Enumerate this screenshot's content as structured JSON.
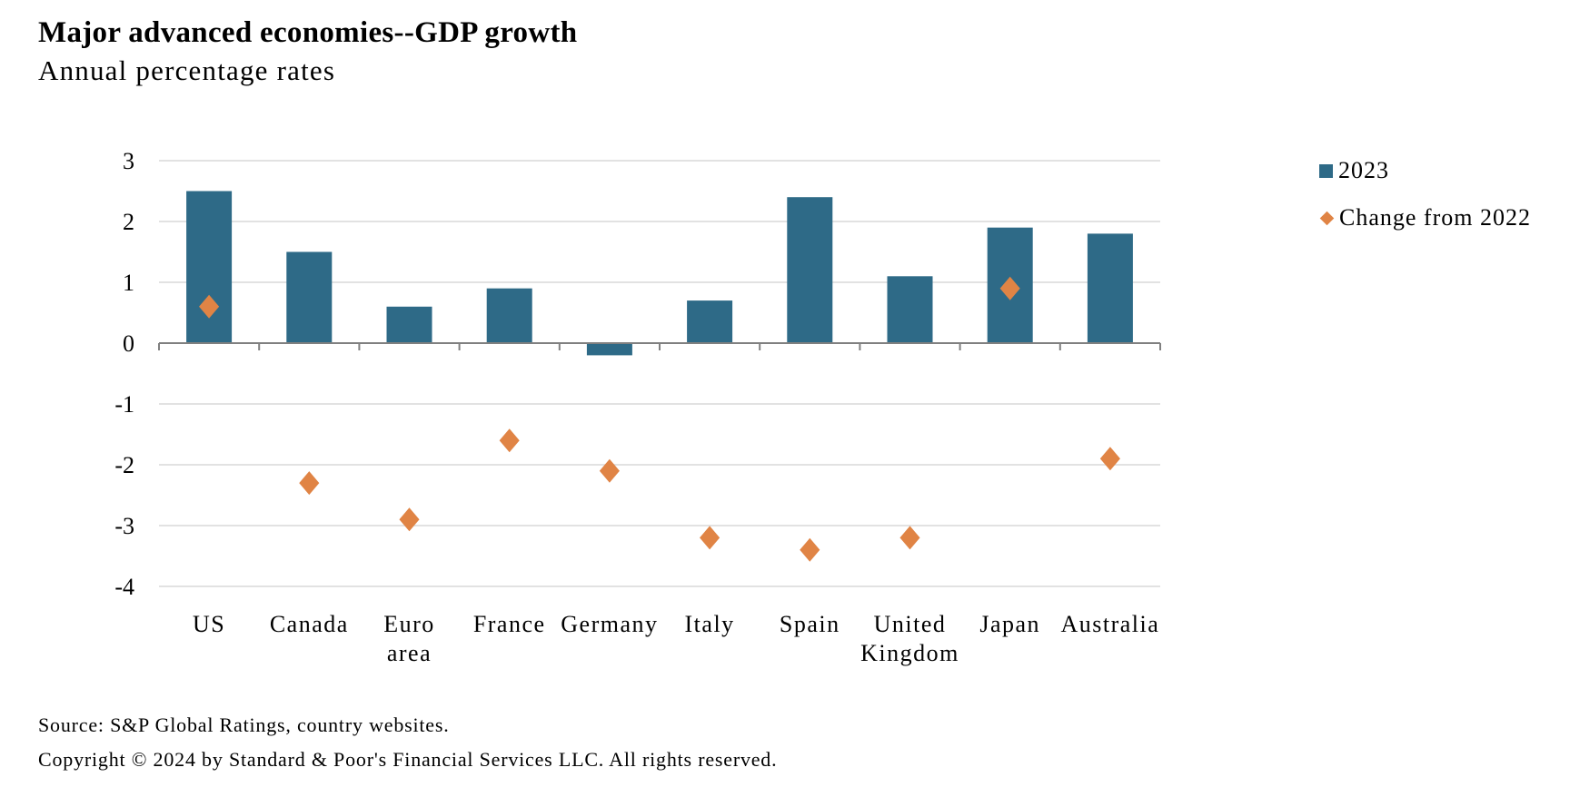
{
  "chart_data": {
    "type": "bar",
    "title": "Major advanced economies--GDP growth",
    "subtitle": "Annual percentage rates",
    "xlabel": "",
    "ylabel": "",
    "ylim": [
      -4,
      3
    ],
    "yticks": [
      3,
      2,
      1,
      0,
      -1,
      -2,
      -3,
      -4
    ],
    "ytick_labels": [
      "3",
      "2",
      "1",
      "0",
      "-1",
      "-2",
      "-3",
      "-4"
    ],
    "grid": true,
    "legend_position": "right",
    "categories": [
      "US",
      "Canada",
      "Euro area",
      "France",
      "Germany",
      "Italy",
      "Spain",
      "United Kingdom",
      "Japan",
      "Australia"
    ],
    "category_label_lines": [
      [
        "US"
      ],
      [
        "Canada"
      ],
      [
        "Euro",
        "area"
      ],
      [
        "France"
      ],
      [
        "Germany"
      ],
      [
        "Italy"
      ],
      [
        "Spain"
      ],
      [
        "United",
        "Kingdom"
      ],
      [
        "Japan"
      ],
      [
        "Australia"
      ]
    ],
    "series": [
      {
        "name": "2023",
        "type": "bar",
        "color": "#2E6A87",
        "values": [
          2.5,
          1.5,
          0.6,
          0.9,
          -0.2,
          0.7,
          2.4,
          1.1,
          1.9,
          1.8
        ]
      },
      {
        "name": "Change from 2022",
        "type": "scatter",
        "marker": "diamond",
        "color": "#E08445",
        "values": [
          0.6,
          -2.3,
          -2.9,
          -1.6,
          -2.1,
          -3.2,
          -3.4,
          -3.2,
          0.9,
          -1.9
        ]
      }
    ]
  },
  "legend": {
    "items": [
      {
        "label": "2023",
        "color": "#2E6A87",
        "marker": "square"
      },
      {
        "label": "Change from 2022",
        "color": "#E08445",
        "marker": "diamond"
      }
    ]
  },
  "footer": {
    "source": "Source: S&P Global Ratings, country websites.",
    "copyright": "Copyright © 2024 by Standard & Poor's Financial Services LLC. All rights reserved."
  },
  "colors": {
    "gridline": "#d9d9d9",
    "axis": "#808080"
  }
}
